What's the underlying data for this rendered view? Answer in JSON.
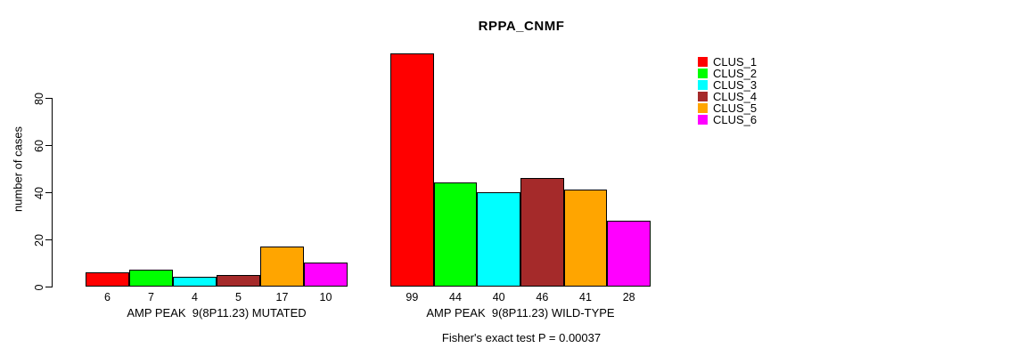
{
  "chart_data": {
    "type": "bar",
    "title": "RPPA_CNMF",
    "ylabel": "number of cases",
    "xlabel": "",
    "yticks": [
      0,
      20,
      40,
      60,
      80
    ],
    "ylim": [
      0,
      99
    ],
    "grid": false,
    "legend_position": "right",
    "bar_value_labels_shown": true,
    "categories": [
      "AMP PEAK  9(8P11.23) MUTATED",
      "AMP PEAK  9(8P11.23) WILD-TYPE"
    ],
    "series": [
      {
        "name": "CLUS_1",
        "color": "#FF0000",
        "values": [
          6,
          99
        ]
      },
      {
        "name": "CLUS_2",
        "color": "#00FF00",
        "values": [
          7,
          44
        ]
      },
      {
        "name": "CLUS_3",
        "color": "#00FFFF",
        "values": [
          4,
          40
        ]
      },
      {
        "name": "CLUS_4",
        "color": "#A52A2A",
        "values": [
          5,
          46
        ]
      },
      {
        "name": "CLUS_5",
        "color": "#FFA500",
        "values": [
          17,
          41
        ]
      },
      {
        "name": "CLUS_6",
        "color": "#FF00FF",
        "values": [
          10,
          28
        ]
      }
    ],
    "annotation": "Fisher's exact test P = 0.00037",
    "axis_color": "#000000",
    "bar_border_color": "#000000"
  }
}
